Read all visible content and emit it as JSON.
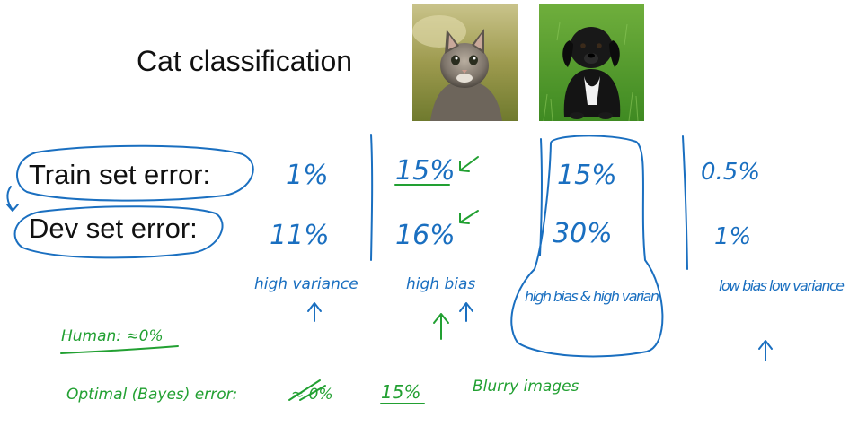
{
  "slide": {
    "title": "Cat classification",
    "row_labels": {
      "train": "Train set error:",
      "dev": "Dev set error:"
    },
    "images": [
      {
        "name": "kitten-photo"
      },
      {
        "name": "puppy-photo"
      }
    ],
    "columns": [
      {
        "train": "1%",
        "dev": "11%",
        "note": "high variance"
      },
      {
        "train": "15%",
        "dev": "16%",
        "note": "high bias"
      },
      {
        "train": "15%",
        "dev": "30%",
        "note": "high bias & high varian"
      },
      {
        "train": "0.5%",
        "dev": "1%",
        "note": "low bias low variance"
      }
    ],
    "annotations": {
      "human": "Human: ≈0%",
      "optimal": "Optimal (Bayes) error:",
      "optimal_struck": "≈ 0%",
      "optimal_value": "15%",
      "blurry": "Blurry images"
    },
    "colors": {
      "text": "#111111",
      "blue_ink": "#1a6fc0",
      "green_ink": "#22a032"
    }
  }
}
